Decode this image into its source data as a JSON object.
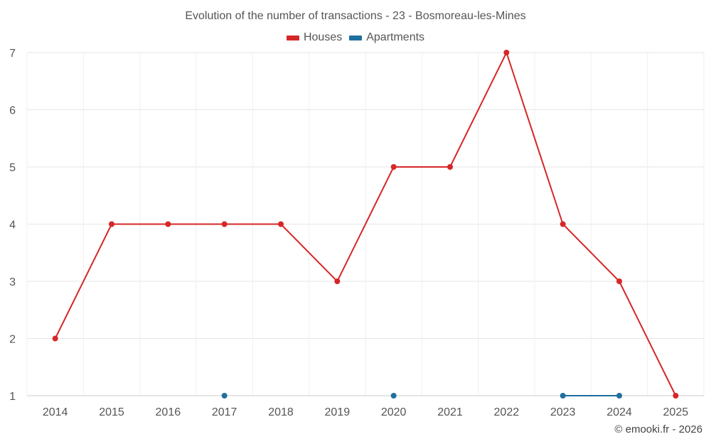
{
  "chart_data": {
    "type": "line",
    "title": "Evolution of the number of transactions - 23 - Bosmoreau-les-Mines",
    "xlabel": "",
    "ylabel": "",
    "x": [
      "2014",
      "2015",
      "2016",
      "2017",
      "2018",
      "2019",
      "2020",
      "2021",
      "2022",
      "2023",
      "2024",
      "2025"
    ],
    "ylim": [
      1,
      7
    ],
    "yticks": [
      1,
      2,
      3,
      4,
      5,
      6,
      7
    ],
    "grid": true,
    "legend_position": "top-center",
    "series": [
      {
        "name": "Houses",
        "color": "#d62728",
        "values": [
          2,
          4,
          4,
          4,
          4,
          3,
          5,
          5,
          7,
          4,
          3,
          1
        ]
      },
      {
        "name": "Apartments",
        "color": "#1f6f9f",
        "values": [
          null,
          null,
          null,
          1,
          null,
          null,
          1,
          null,
          null,
          1,
          1,
          null
        ]
      }
    ]
  },
  "credit": "© emooki.fr - 2026"
}
